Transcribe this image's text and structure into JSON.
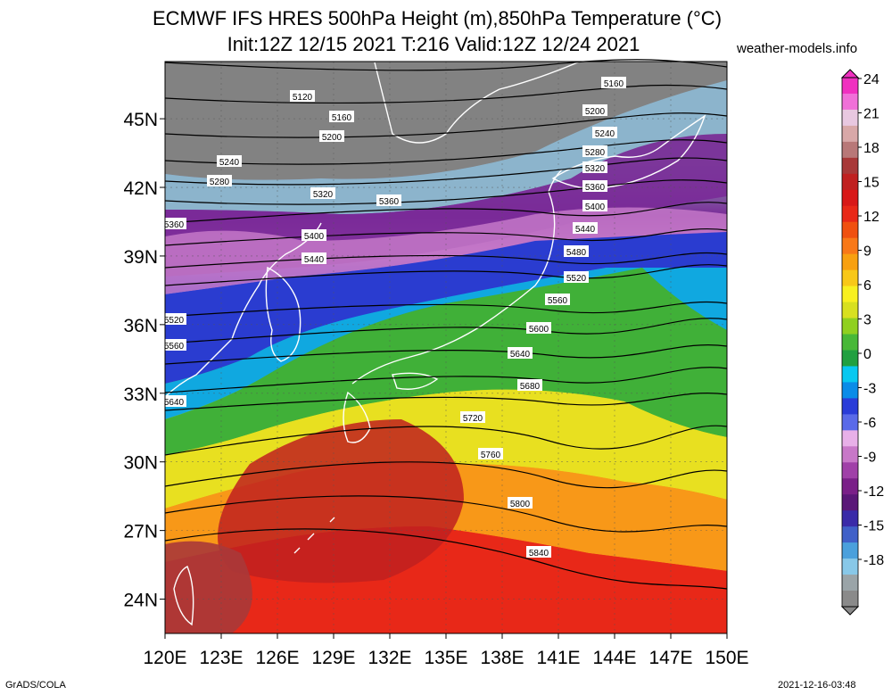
{
  "header": {
    "title_line1": "ECMWF IFS HRES 500hPa Height (m),850hPa Temperature (°C)",
    "title_line2": "Init:12Z 12/15 2021 T:216 Valid:12Z 12/24 2021",
    "site": "weather-models.info"
  },
  "footer": {
    "left": "GrADS/COLA",
    "right": "2021-12-16-03:48"
  },
  "axes": {
    "x_ticks": [
      "120E",
      "123E",
      "126E",
      "129E",
      "132E",
      "135E",
      "138E",
      "141E",
      "144E",
      "147E",
      "150E"
    ],
    "y_ticks": [
      "45N",
      "42N",
      "39N",
      "36N",
      "33N",
      "30N",
      "27N",
      "24N"
    ]
  },
  "colorbar": {
    "labels": [
      "24",
      "21",
      "18",
      "15",
      "12",
      "9",
      "6",
      "3",
      "0",
      "-3",
      "-6",
      "-9",
      "-12",
      "-15",
      "-18"
    ],
    "colors": [
      "#8a8a8a",
      "#9aa4a8",
      "#88c8e8",
      "#4aa0dc",
      "#4060c8",
      "#3a2aa8",
      "#5a1878",
      "#7a2088",
      "#a040a8",
      "#c878c8",
      "#e8b0e8",
      "#5a6ae8",
      "#2a3cd8",
      "#0a8ce8",
      "#08c8f0",
      "#20a040",
      "#48b838",
      "#90d020",
      "#d8e020",
      "#f8f020",
      "#f8c818",
      "#f8a010",
      "#f87818",
      "#f05010",
      "#e82818",
      "#d81818",
      "#c02020",
      "#a83838",
      "#b87878",
      "#d8a8a8",
      "#e8c8e0",
      "#f070d8",
      "#f030c0"
    ]
  },
  "map_data": {
    "type": "contour-overlay",
    "region": "East Asia / Japan",
    "lon_range": [
      120,
      150
    ],
    "lat_range": [
      22.5,
      47.5
    ],
    "shaded_field": "850hPa Temperature (°C)",
    "contour_field": "500hPa Height (m)",
    "contour_labels": [
      "5120",
      "5160",
      "5160",
      "5200",
      "5200",
      "5240",
      "5240",
      "5280",
      "5280",
      "5320",
      "5320",
      "5360",
      "5360",
      "5360",
      "5400",
      "5400",
      "5440",
      "5440",
      "5480",
      "5520",
      "5520",
      "5560",
      "5560",
      "5600",
      "5640",
      "5640",
      "5680",
      "5720",
      "5760",
      "5800",
      "5840"
    ]
  }
}
